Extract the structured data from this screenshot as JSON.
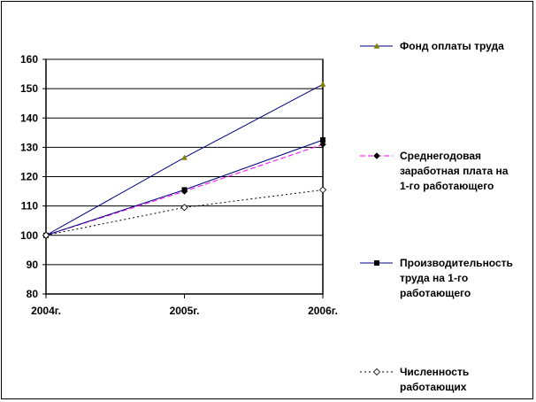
{
  "chart_data": {
    "type": "line",
    "title": "",
    "xlabel": "",
    "ylabel": "",
    "categories": [
      "2004г.",
      "2005г.",
      "2006г."
    ],
    "ylim": [
      80,
      160
    ],
    "yticks": [
      80,
      90,
      100,
      110,
      120,
      130,
      140,
      150,
      160
    ],
    "grid": true,
    "legend_position": "right",
    "series": [
      {
        "name": "Фонд оплаты труда",
        "name_lines": [
          "Фонд оплаты труда"
        ],
        "values": [
          100,
          126.5,
          151.5
        ],
        "color": "#00007f",
        "marker": "triangle",
        "dash": "solid"
      },
      {
        "name": "Среднегодовая заработная плата на 1-го работающего",
        "name_lines": [
          "Среднегодовая",
          "заработная плата на",
          "1-го работающего"
        ],
        "values": [
          100,
          115,
          131
        ],
        "color": "#ff00ff",
        "marker": "diamond",
        "dash": "dashed"
      },
      {
        "name": "Производительность труда на 1-го работающего",
        "name_lines": [
          "Производительность",
          "труда на 1-го",
          "работающего"
        ],
        "values": [
          100,
          115.5,
          132.5
        ],
        "color": "#000080",
        "marker": "square",
        "dash": "solid"
      },
      {
        "name": "Численность работающих",
        "name_lines": [
          "Численность",
          "работающих"
        ],
        "values": [
          100,
          109.5,
          115.5
        ],
        "color": "#000000",
        "marker": "open-diamond",
        "dash": "dotted"
      }
    ]
  }
}
